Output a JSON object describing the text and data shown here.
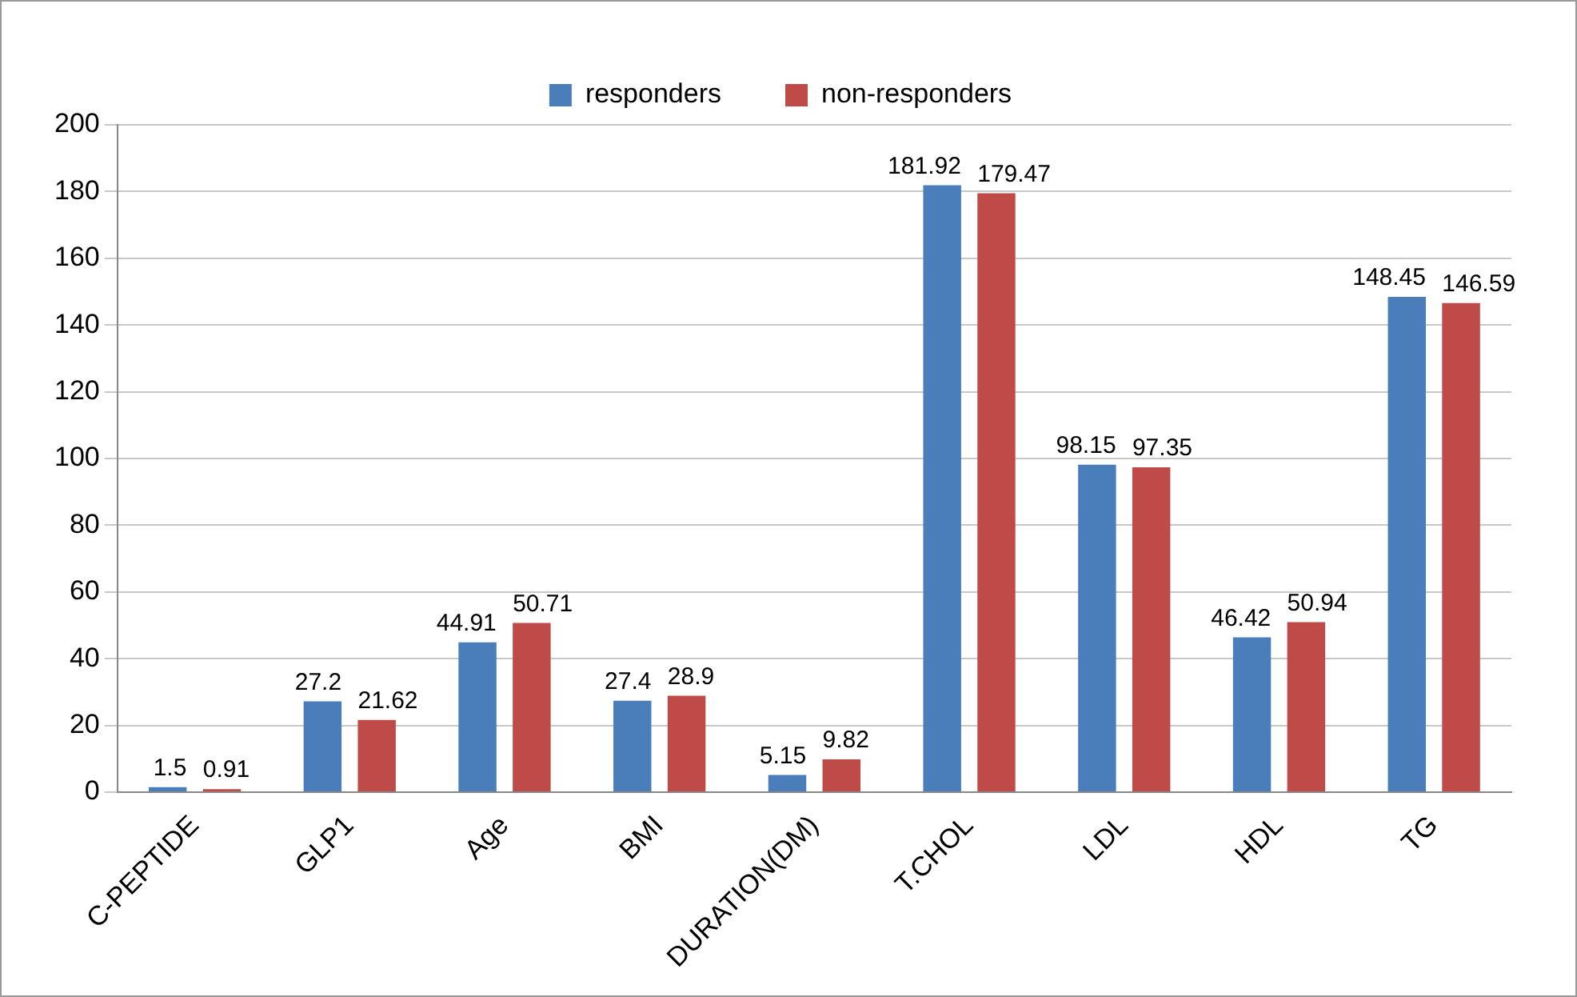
{
  "chart_data": {
    "type": "bar",
    "categories": [
      "C-PEPTIDE",
      "GLP1",
      "Age",
      "BMI",
      "DURATION(DM)",
      "T.CHOL",
      "LDL",
      "HDL",
      "TG"
    ],
    "series": [
      {
        "name": "responders",
        "color": "#4a7ebb",
        "values": [
          1.5,
          27.2,
          44.91,
          27.4,
          5.15,
          181.92,
          98.15,
          46.42,
          148.45
        ]
      },
      {
        "name": "non-responders",
        "color": "#be4b48",
        "values": [
          0.91,
          21.62,
          50.71,
          28.9,
          9.82,
          179.47,
          97.35,
          50.94,
          146.59
        ]
      }
    ],
    "ylim": [
      0,
      200
    ],
    "yticks": [
      0,
      20,
      40,
      60,
      80,
      100,
      120,
      140,
      160,
      180,
      200
    ],
    "grid": "y",
    "legend": "top",
    "data_labels": true
  }
}
